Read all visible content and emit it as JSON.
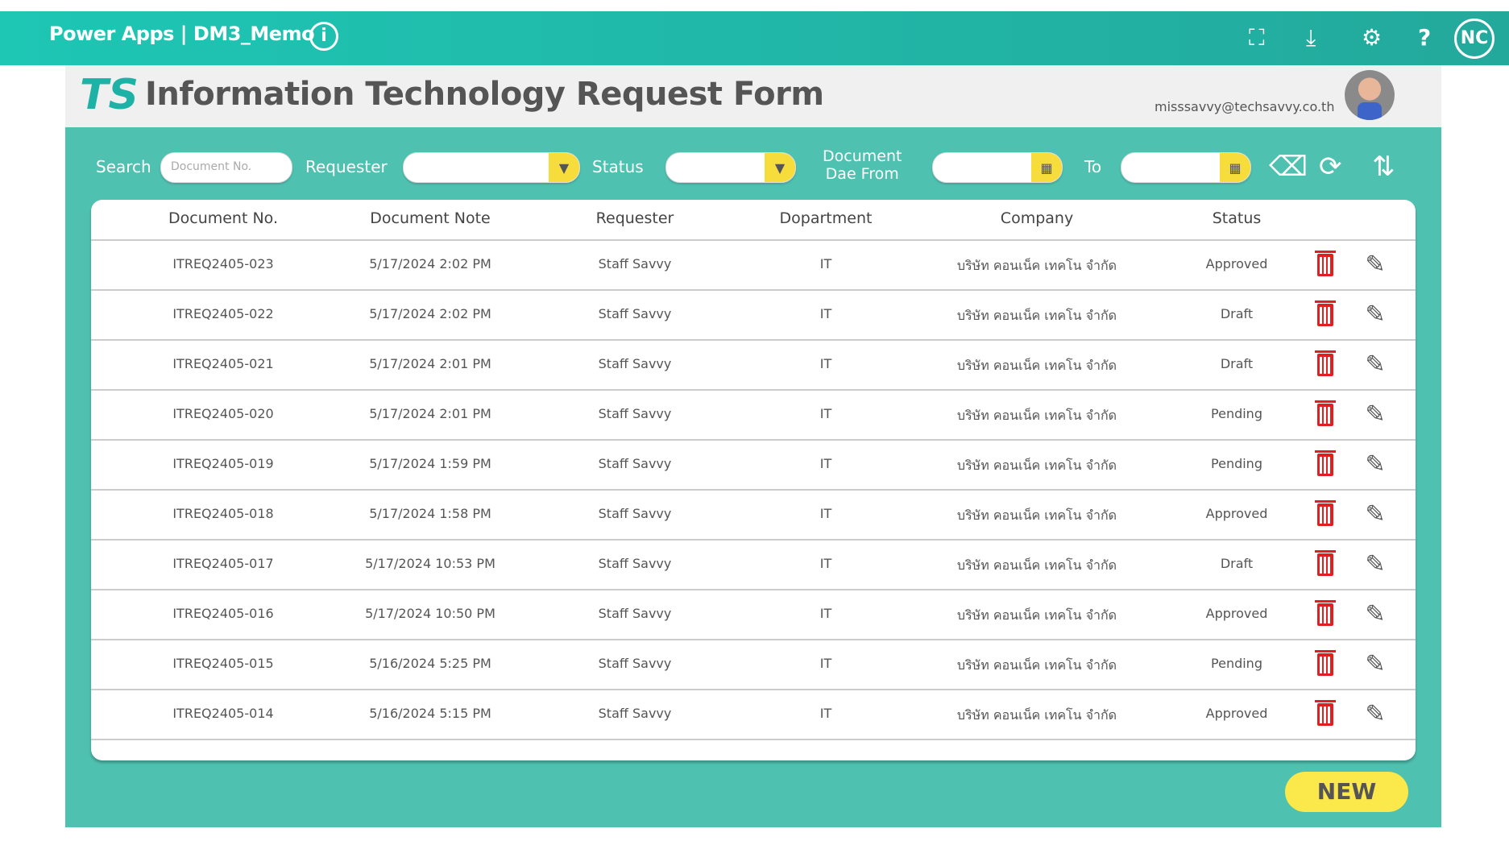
{
  "app": {
    "title": "Power Apps | DM3_Memo",
    "user_initials": "NC"
  },
  "header": {
    "title": "Information Technology Request Form",
    "email": "misssavvy@techsavvy.co.th"
  },
  "filters": {
    "search_label": "Search",
    "search_placeholder": "Document No.",
    "requester_label": "Requester",
    "status_label": "Status",
    "date_from_label_1": "Document",
    "date_from_label_2": "Dae From",
    "to_label": "To"
  },
  "table": {
    "columns": [
      "Document No.",
      "Document Note",
      "Requester",
      "Dopartment",
      "Company",
      "Status"
    ],
    "rows": [
      {
        "doc": "ITREQ2405-023",
        "note": "5/17/2024 2:02 PM",
        "requester": "Staff Savvy",
        "dept": "IT",
        "company": "บริษัท คอนเน็ค เทคโน จำกัด",
        "status": "Approved"
      },
      {
        "doc": "ITREQ2405-022",
        "note": "5/17/2024 2:02 PM",
        "requester": "Staff Savvy",
        "dept": "IT",
        "company": "บริษัท คอนเน็ค เทคโน จำกัด",
        "status": "Draft"
      },
      {
        "doc": "ITREQ2405-021",
        "note": "5/17/2024 2:01 PM",
        "requester": "Staff Savvy",
        "dept": "IT",
        "company": "บริษัท คอนเน็ค เทคโน จำกัด",
        "status": "Draft"
      },
      {
        "doc": "ITREQ2405-020",
        "note": "5/17/2024 2:01 PM",
        "requester": "Staff Savvy",
        "dept": "IT",
        "company": "บริษัท คอนเน็ค เทคโน จำกัด",
        "status": "Pending"
      },
      {
        "doc": "ITREQ2405-019",
        "note": "5/17/2024 1:59 PM",
        "requester": "Staff Savvy",
        "dept": "IT",
        "company": "บริษัท คอนเน็ค เทคโน จำกัด",
        "status": "Pending"
      },
      {
        "doc": "ITREQ2405-018",
        "note": "5/17/2024 1:58 PM",
        "requester": "Staff Savvy",
        "dept": "IT",
        "company": "บริษัท คอนเน็ค เทคโน จำกัด",
        "status": "Approved"
      },
      {
        "doc": "ITREQ2405-017",
        "note": "5/17/2024 10:53 PM",
        "requester": "Staff Savvy",
        "dept": "IT",
        "company": "บริษัท คอนเน็ค เทคโน จำกัด",
        "status": "Draft"
      },
      {
        "doc": "ITREQ2405-016",
        "note": "5/17/2024 10:50 PM",
        "requester": "Staff Savvy",
        "dept": "IT",
        "company": "บริษัท คอนเน็ค เทคโน จำกัด",
        "status": "Approved"
      },
      {
        "doc": "ITREQ2405-015",
        "note": "5/16/2024 5:25 PM",
        "requester": "Staff Savvy",
        "dept": "IT",
        "company": "บริษัท คอนเน็ค เทคโน จำกัด",
        "status": "Pending"
      },
      {
        "doc": "ITREQ2405-014",
        "note": "5/16/2024 5:15 PM",
        "requester": "Staff Savvy",
        "dept": "IT",
        "company": "บริษัท คอนเน็ค เทคโน จำกัด",
        "status": "Approved"
      }
    ]
  },
  "actions": {
    "new_label": "NEW"
  },
  "colors": {
    "topbar": "#1ec6b4",
    "panel": "#4fc1b1",
    "accent_yellow": "#f7dd3b",
    "delete_red": "#e02020"
  }
}
